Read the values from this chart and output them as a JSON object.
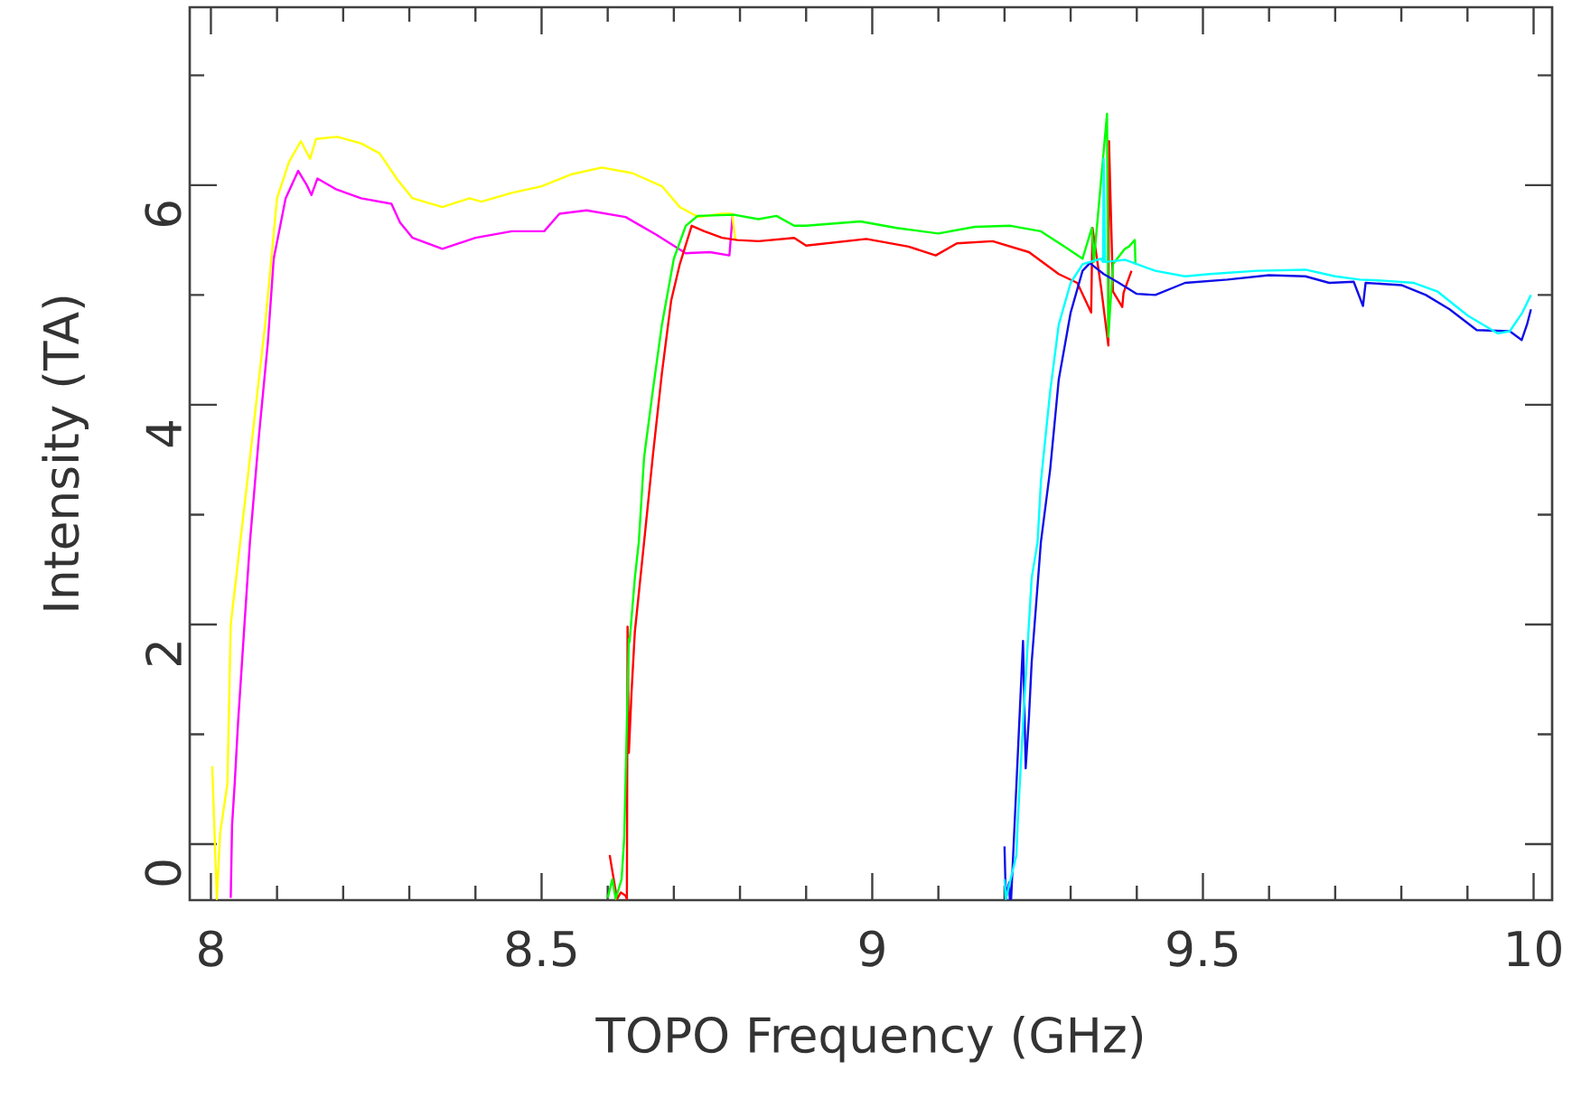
{
  "chart_data": {
    "type": "line",
    "xlabel": "TOPO Frequency (GHz)",
    "ylabel": "Intensity (TA)",
    "xlim": [
      7.968,
      10.028
    ],
    "ylim": [
      -0.51,
      7.62
    ],
    "xticks": [
      8,
      {
        "value": 8.1,
        "label": null
      },
      {
        "value": 8.2,
        "label": null
      },
      {
        "value": 8.3,
        "label": null
      },
      {
        "value": 8.4,
        "label": null
      },
      8.5,
      {
        "value": 8.6,
        "label": null
      },
      {
        "value": 8.7,
        "label": null
      },
      {
        "value": 8.8,
        "label": null
      },
      {
        "value": 8.9,
        "label": null
      },
      9,
      {
        "value": 9.1,
        "label": null
      },
      {
        "value": 9.2,
        "label": null
      },
      {
        "value": 9.3,
        "label": null
      },
      {
        "value": 9.4,
        "label": null
      },
      9.5,
      {
        "value": 9.6,
        "label": null
      },
      {
        "value": 9.7,
        "label": null
      },
      {
        "value": 9.8,
        "label": null
      },
      {
        "value": 9.9,
        "label": null
      },
      10
    ],
    "yticks": [
      0,
      {
        "value": 1,
        "label": null
      },
      2,
      {
        "value": 3,
        "label": null
      },
      4,
      {
        "value": 5,
        "label": null
      },
      6,
      {
        "value": 7,
        "label": null
      }
    ],
    "marker": "none",
    "line_style": "solid",
    "series": [
      {
        "color": "#ff00ff",
        "x": [
          8.03,
          8.032,
          8.036,
          8.041,
          8.05,
          8.059,
          8.073,
          8.086,
          8.095,
          8.113,
          8.132,
          8.145,
          8.152,
          8.161,
          8.19,
          8.227,
          8.273,
          8.286,
          8.305,
          8.35,
          8.4,
          8.455,
          8.504,
          8.527,
          8.568,
          8.627,
          8.673,
          8.718,
          8.755,
          8.784,
          8.789
        ],
        "values": [
          -0.49,
          0.17,
          0.55,
          1.1,
          1.93,
          2.75,
          3.74,
          4.56,
          5.33,
          5.88,
          6.13,
          6.0,
          5.91,
          6.06,
          5.96,
          5.88,
          5.83,
          5.66,
          5.52,
          5.42,
          5.52,
          5.58,
          5.58,
          5.74,
          5.77,
          5.71,
          5.55,
          5.38,
          5.39,
          5.36,
          5.74
        ]
      },
      {
        "color": "#ffff00",
        "x": [
          8.002,
          8.009,
          8.014,
          8.025,
          8.03,
          8.055,
          8.082,
          8.1,
          8.118,
          8.136,
          8.15,
          8.159,
          8.191,
          8.227,
          8.255,
          8.282,
          8.305,
          8.35,
          8.391,
          8.409,
          8.455,
          8.5,
          8.546,
          8.591,
          8.637,
          8.682,
          8.709,
          8.737,
          8.773,
          8.788,
          8.793
        ],
        "values": [
          0.71,
          -0.5,
          0.1,
          0.55,
          2.0,
          3.3,
          4.73,
          5.88,
          6.21,
          6.4,
          6.24,
          6.42,
          6.44,
          6.38,
          6.29,
          6.05,
          5.88,
          5.8,
          5.88,
          5.85,
          5.93,
          5.99,
          6.1,
          6.16,
          6.11,
          5.99,
          5.8,
          5.71,
          5.74,
          5.74,
          5.5
        ]
      },
      {
        "color": "#ff0000",
        "x": [
          8.603,
          8.614,
          8.62,
          8.627,
          8.629,
          8.63,
          8.632,
          8.636,
          8.641,
          8.655,
          8.668,
          8.682,
          8.696,
          8.709,
          8.727,
          8.746,
          8.773,
          8.796,
          8.828,
          8.882,
          8.9,
          8.991,
          9.055,
          9.096,
          9.128,
          9.182,
          9.237,
          9.282,
          9.31,
          9.331,
          9.333,
          9.346,
          9.357,
          9.358,
          9.364,
          9.378,
          9.38,
          9.392
        ],
        "values": [
          -0.1,
          -0.5,
          -0.44,
          -0.47,
          -0.5,
          1.98,
          0.83,
          1.38,
          1.93,
          2.75,
          3.52,
          4.29,
          4.95,
          5.28,
          5.63,
          5.58,
          5.52,
          5.5,
          5.49,
          5.52,
          5.45,
          5.51,
          5.44,
          5.36,
          5.47,
          5.49,
          5.39,
          5.19,
          5.11,
          4.84,
          5.61,
          5.07,
          4.54,
          6.4,
          5.03,
          4.89,
          5.02,
          5.22
        ]
      },
      {
        "color": "#00ff00",
        "x": [
          8.6,
          8.607,
          8.612,
          8.621,
          8.625,
          8.629,
          8.632,
          8.633,
          8.641,
          8.647,
          8.655,
          8.668,
          8.682,
          8.7,
          8.718,
          8.736,
          8.791,
          8.828,
          8.855,
          8.882,
          8.9,
          8.982,
          9.037,
          9.1,
          9.155,
          9.209,
          9.255,
          9.291,
          9.318,
          9.332,
          9.335,
          9.355,
          9.357,
          9.364,
          9.382,
          9.388,
          9.397,
          9.398
        ],
        "values": [
          -0.49,
          -0.32,
          -0.5,
          -0.32,
          0.06,
          1.1,
          1.87,
          1.84,
          2.42,
          2.75,
          3.52,
          4.12,
          4.73,
          5.33,
          5.63,
          5.72,
          5.73,
          5.69,
          5.72,
          5.63,
          5.63,
          5.67,
          5.61,
          5.56,
          5.62,
          5.63,
          5.58,
          5.44,
          5.33,
          5.61,
          5.3,
          6.65,
          4.62,
          5.28,
          5.42,
          5.44,
          5.5,
          5.28
        ]
      },
      {
        "color": "#1010e8",
        "x": [
          9.2,
          9.202,
          9.205,
          9.207,
          9.208,
          9.21,
          9.228,
          9.232,
          9.237,
          9.241,
          9.255,
          9.269,
          9.282,
          9.3,
          9.318,
          9.329,
          9.35,
          9.373,
          9.4,
          9.428,
          9.473,
          9.537,
          9.6,
          9.655,
          9.691,
          9.728,
          9.742,
          9.746,
          9.8,
          9.837,
          9.873,
          9.914,
          9.964,
          9.982,
          9.99,
          9.996
        ],
        "values": [
          -0.02,
          -0.5,
          -0.4,
          -0.35,
          -0.5,
          -0.5,
          1.85,
          0.69,
          1.16,
          1.65,
          2.75,
          3.41,
          4.23,
          4.84,
          5.22,
          5.29,
          5.19,
          5.11,
          5.01,
          5.0,
          5.11,
          5.14,
          5.18,
          5.17,
          5.11,
          5.12,
          4.9,
          5.11,
          5.09,
          5.0,
          4.87,
          4.68,
          4.67,
          4.59,
          4.73,
          4.87
        ]
      },
      {
        "color": "#00ffff",
        "x": [
          9.2,
          9.202,
          9.218,
          9.22,
          9.228,
          9.241,
          9.25,
          9.255,
          9.269,
          9.282,
          9.3,
          9.318,
          9.346,
          9.349,
          9.35,
          9.352,
          9.382,
          9.428,
          9.473,
          9.51,
          9.582,
          9.655,
          9.7,
          9.737,
          9.774,
          9.819,
          9.855,
          9.901,
          9.946,
          9.964,
          9.983,
          9.996
        ],
        "values": [
          -0.32,
          -0.5,
          -0.1,
          0.2,
          1.1,
          2.42,
          2.75,
          3.3,
          4.12,
          4.73,
          5.11,
          5.28,
          5.33,
          5.3,
          6.24,
          5.3,
          5.32,
          5.22,
          5.17,
          5.19,
          5.22,
          5.23,
          5.17,
          5.14,
          5.13,
          5.11,
          5.03,
          4.81,
          4.65,
          4.67,
          4.84,
          5.0
        ]
      }
    ]
  }
}
